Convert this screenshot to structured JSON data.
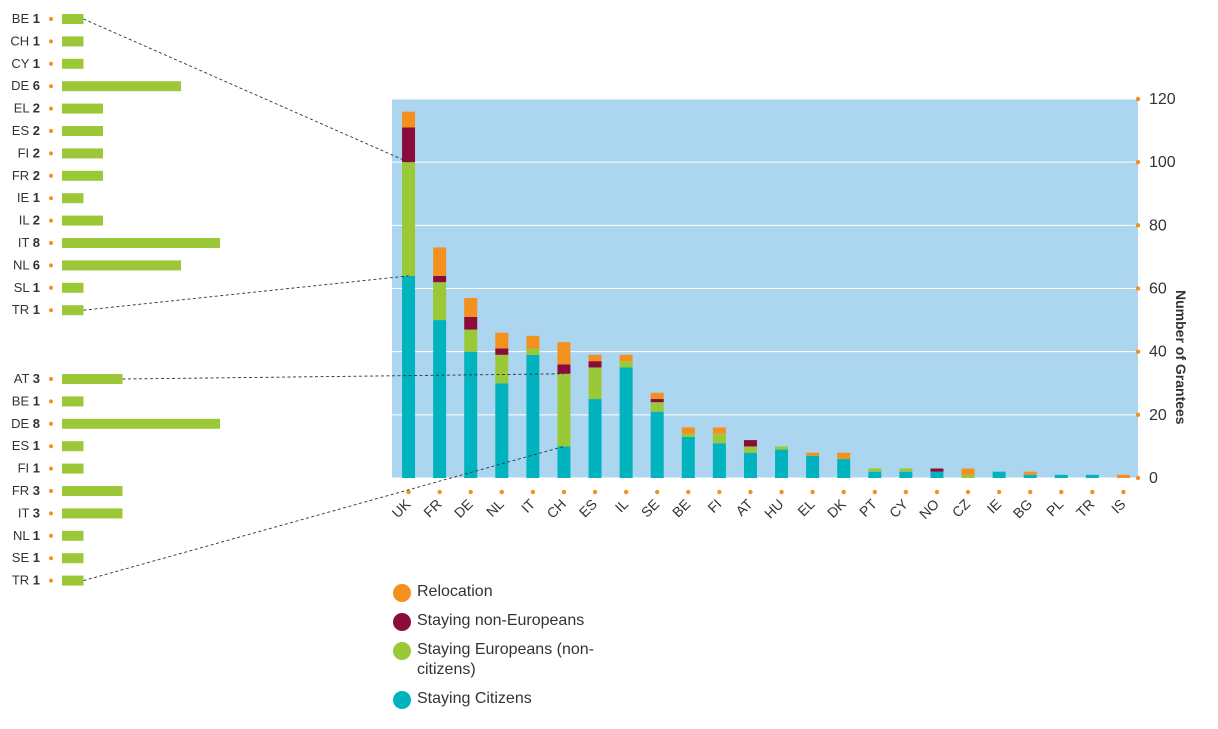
{
  "chart_data": {
    "type": "bar",
    "stacked": true,
    "ylabel": "Number of Grantees",
    "ylim": [
      0,
      120
    ],
    "yticks": [
      0,
      20,
      40,
      60,
      80,
      100,
      120
    ],
    "grid": true,
    "background": "#acd5f0",
    "categories": [
      "UK",
      "FR",
      "DE",
      "NL",
      "IT",
      "CH",
      "ES",
      "IL",
      "SE",
      "BE",
      "FI",
      "AT",
      "HU",
      "EL",
      "DK",
      "PT",
      "CY",
      "NO",
      "CZ",
      "IE",
      "BG",
      "PL",
      "TR",
      "IS"
    ],
    "series": [
      {
        "name": "Staying Citizens",
        "color": "#00b3bf",
        "values": [
          64,
          50,
          40,
          30,
          39,
          10,
          25,
          35,
          21,
          13,
          11,
          8,
          9,
          7,
          6,
          2,
          2,
          2,
          0,
          2,
          1,
          1,
          1,
          0
        ]
      },
      {
        "name": "Staying Europeans (non-citizens)",
        "color": "#9bc837",
        "values": [
          36,
          12,
          7,
          9,
          2,
          23,
          10,
          2,
          3,
          1,
          3,
          2,
          1,
          0,
          0,
          1,
          1,
          0,
          1,
          0,
          0,
          0,
          0,
          0
        ]
      },
      {
        "name": "Staying non-Europeans",
        "color": "#8b0c3c",
        "values": [
          11,
          2,
          4,
          2,
          0,
          3,
          2,
          0,
          1,
          0,
          0,
          2,
          0,
          0,
          0,
          0,
          0,
          1,
          0,
          0,
          0,
          0,
          0,
          0
        ]
      },
      {
        "name": "Relocation",
        "color": "#f3901e",
        "values": [
          5,
          9,
          6,
          5,
          4,
          7,
          2,
          2,
          2,
          2,
          2,
          0,
          0,
          1,
          2,
          0,
          0,
          0,
          2,
          0,
          1,
          0,
          0,
          1
        ]
      }
    ]
  },
  "detail_groups": [
    {
      "items": [
        {
          "code": "BE",
          "value": 1
        },
        {
          "code": "CH",
          "value": 1
        },
        {
          "code": "CY",
          "value": 1
        },
        {
          "code": "DE",
          "value": 6
        },
        {
          "code": "EL",
          "value": 2
        },
        {
          "code": "ES",
          "value": 2
        },
        {
          "code": "FI",
          "value": 2
        },
        {
          "code": "FR",
          "value": 2
        },
        {
          "code": "IE",
          "value": 1
        },
        {
          "code": "IL",
          "value": 2
        },
        {
          "code": "IT",
          "value": 8
        },
        {
          "code": "NL",
          "value": 6
        },
        {
          "code": "SL",
          "value": 1
        },
        {
          "code": "TR",
          "value": 1
        }
      ]
    },
    {
      "items": [
        {
          "code": "AT",
          "value": 3
        },
        {
          "code": "BE",
          "value": 1
        },
        {
          "code": "DE",
          "value": 8
        },
        {
          "code": "ES",
          "value": 1
        },
        {
          "code": "FI",
          "value": 1
        },
        {
          "code": "FR",
          "value": 3
        },
        {
          "code": "IT",
          "value": 3
        },
        {
          "code": "NL",
          "value": 1
        },
        {
          "code": "SE",
          "value": 1
        },
        {
          "code": "TR",
          "value": 1
        }
      ]
    }
  ],
  "detail_bar_color": "#9bc837",
  "dot_color": "#f3901e",
  "legend": [
    {
      "label": "Relocation",
      "color": "#f3901e"
    },
    {
      "label": "Staying non-Europeans",
      "color": "#8b0c3c"
    },
    {
      "label": "Staying Europeans (non-citizens)",
      "color": "#9bc837"
    },
    {
      "label": "Staying Citizens",
      "color": "#00b3bf"
    }
  ]
}
